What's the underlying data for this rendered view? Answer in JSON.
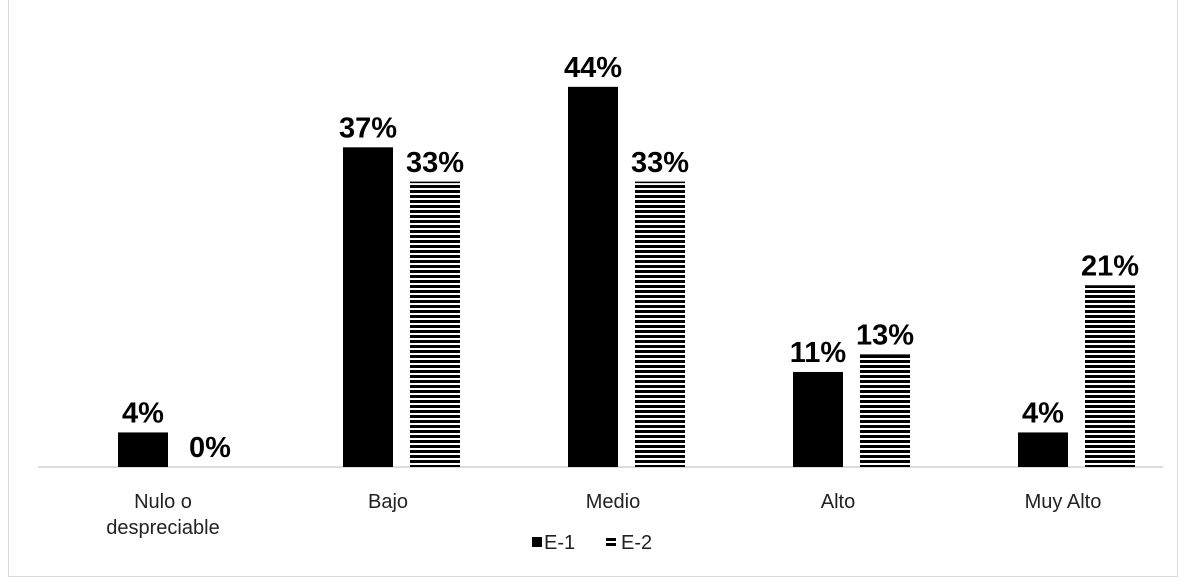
{
  "chart_data": {
    "type": "bar",
    "categories": [
      [
        "Nulo o",
        "despreciable"
      ],
      [
        "Bajo"
      ],
      [
        "Medio"
      ],
      [
        "Alto"
      ],
      [
        "Muy Alto"
      ]
    ],
    "series": [
      {
        "name": "E-1",
        "values": [
          4,
          37,
          44,
          11,
          4
        ],
        "labels": [
          "4%",
          "37%",
          "44%",
          "11%",
          "4%"
        ],
        "color": "#000000",
        "pattern": "solid"
      },
      {
        "name": "E-2",
        "values": [
          0,
          33,
          33,
          13,
          21
        ],
        "labels": [
          "0%",
          "33%",
          "33%",
          "13%",
          "21%"
        ],
        "color": "#000000",
        "pattern": "horizontal-stripes"
      }
    ],
    "ylim": [
      0,
      50
    ],
    "grid": false,
    "legend_position": "bottom",
    "title": "",
    "xlabel": "",
    "ylabel": ""
  }
}
